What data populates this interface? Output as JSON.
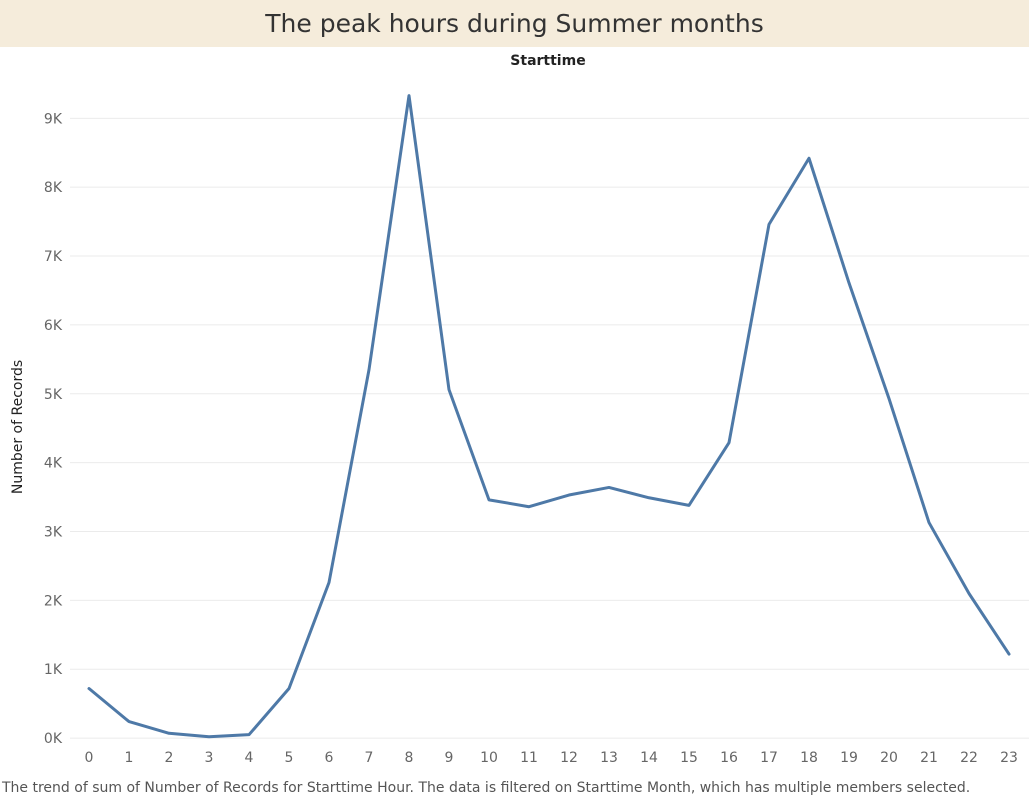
{
  "title": "The peak hours during Summer months",
  "caption": "The trend of sum of Number of Records for Starttime Hour.  The data is filtered on Starttime Month, which has multiple members selected.",
  "colors": {
    "line": "#4e79a7",
    "grid": "#ebebeb",
    "title_bg": "#f5ecdb"
  },
  "chart_data": {
    "type": "line",
    "title": "The peak hours during Summer months",
    "xlabel": "Starttime",
    "ylabel": "Number of Records",
    "x": [
      0,
      1,
      2,
      3,
      4,
      5,
      6,
      7,
      8,
      9,
      10,
      11,
      12,
      13,
      14,
      15,
      16,
      17,
      18,
      19,
      20,
      21,
      22,
      23
    ],
    "y_ticks": [
      {
        "value": 0,
        "label": "0K"
      },
      {
        "value": 1000,
        "label": "1K"
      },
      {
        "value": 2000,
        "label": "2K"
      },
      {
        "value": 3000,
        "label": "3K"
      },
      {
        "value": 4000,
        "label": "4K"
      },
      {
        "value": 5000,
        "label": "5K"
      },
      {
        "value": 6000,
        "label": "6K"
      },
      {
        "value": 7000,
        "label": "7K"
      },
      {
        "value": 8000,
        "label": "8K"
      },
      {
        "value": 9000,
        "label": "9K"
      }
    ],
    "ylim": [
      -100,
      9600
    ],
    "grid": true,
    "legend": "none",
    "series": [
      {
        "values": [
          720,
          240,
          70,
          20,
          50,
          720,
          2260,
          5350,
          9330,
          5060,
          3460,
          3360,
          3530,
          3640,
          3490,
          3380,
          4290,
          7460,
          8420,
          6610,
          4930,
          3130,
          2100,
          1220
        ]
      }
    ]
  }
}
